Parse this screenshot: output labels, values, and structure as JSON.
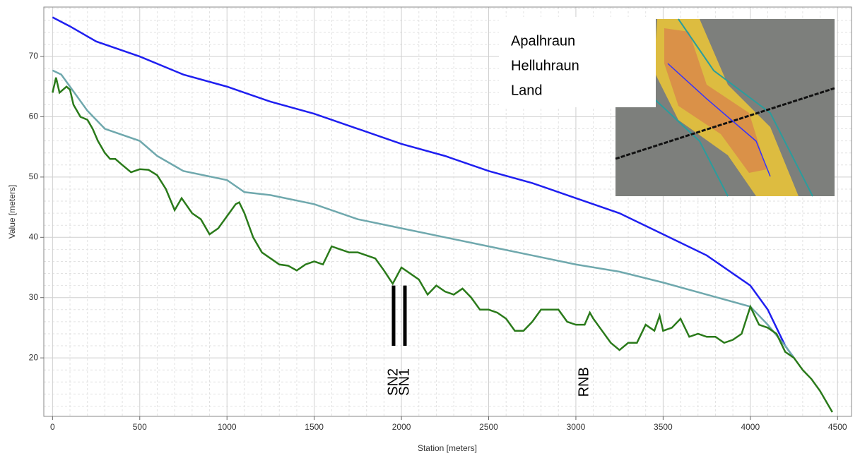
{
  "chart_data": {
    "type": "line",
    "xlabel": "Station [meters]",
    "ylabel": "Value [meters]",
    "xlim": [
      -50,
      4580
    ],
    "ylim": [
      10.3,
      78.2
    ],
    "xticks": [
      0,
      500,
      1000,
      1500,
      2000,
      2500,
      3000,
      3500,
      4000,
      4500
    ],
    "yticks": [
      20,
      30,
      40,
      50,
      60,
      70
    ],
    "grid": true,
    "series": [
      {
        "name": "Apalhraun",
        "color": "#1f1ff0",
        "x": [
          0,
          100,
          250,
          500,
          750,
          1000,
          1250,
          1500,
          1750,
          2000,
          2250,
          2500,
          2750,
          3000,
          3250,
          3500,
          3750,
          3900,
          4000,
          4100,
          4200,
          4250
        ],
        "values": [
          76.5,
          75,
          72.5,
          70,
          67,
          65,
          62.5,
          60.5,
          58,
          55.5,
          53.5,
          51,
          49,
          46.5,
          44,
          40.5,
          37,
          34,
          32,
          28,
          22,
          20
        ]
      },
      {
        "name": "Helluhraun",
        "color": "#6fa8ad",
        "x": [
          0,
          50,
          100,
          200,
          300,
          500,
          600,
          750,
          1000,
          1100,
          1250,
          1500,
          1750,
          2000,
          2250,
          2500,
          2750,
          3000,
          3250,
          3500,
          3750,
          4000,
          4100,
          4200,
          4250
        ],
        "values": [
          67.7,
          67,
          65,
          61,
          58,
          56,
          53.5,
          51,
          49.5,
          47.5,
          47,
          45.5,
          43,
          41.5,
          40,
          38.5,
          37,
          35.5,
          34.3,
          32.5,
          30.5,
          28.5,
          25.5,
          22,
          20
        ]
      },
      {
        "name": "Land",
        "color": "#2a7a1a",
        "x": [
          0,
          20,
          40,
          80,
          100,
          120,
          160,
          200,
          230,
          260,
          300,
          330,
          360,
          400,
          450,
          500,
          550,
          600,
          650,
          700,
          740,
          800,
          850,
          900,
          950,
          1000,
          1050,
          1070,
          1100,
          1150,
          1200,
          1250,
          1300,
          1350,
          1400,
          1450,
          1500,
          1550,
          1600,
          1650,
          1700,
          1750,
          1800,
          1850,
          1900,
          1950,
          2000,
          2050,
          2100,
          2150,
          2200,
          2250,
          2300,
          2350,
          2400,
          2450,
          2500,
          2550,
          2600,
          2650,
          2700,
          2750,
          2800,
          2850,
          2900,
          2950,
          3000,
          3050,
          3080,
          3100,
          3150,
          3200,
          3250,
          3300,
          3350,
          3400,
          3450,
          3480,
          3500,
          3550,
          3600,
          3650,
          3700,
          3750,
          3800,
          3850,
          3900,
          3950,
          4000,
          4050,
          4100,
          4150,
          4200,
          4250,
          4300,
          4350,
          4400,
          4450,
          4470
        ],
        "values": [
          64,
          66.5,
          64,
          65,
          64.5,
          62,
          60,
          59.5,
          58,
          56,
          54,
          53,
          53,
          52,
          50.8,
          51.3,
          51.2,
          50.3,
          48,
          44.5,
          46.5,
          44,
          43,
          40.5,
          41.5,
          43.5,
          45.5,
          45.8,
          44,
          40,
          37.5,
          36.5,
          35.5,
          35.3,
          34.5,
          35.5,
          36,
          35.5,
          38.5,
          38,
          37.5,
          37.5,
          37,
          36.5,
          34.5,
          32.3,
          35,
          34,
          33,
          30.5,
          32,
          31,
          30.5,
          31.5,
          30,
          28,
          28,
          27.5,
          26.5,
          24.5,
          24.5,
          26,
          28,
          28,
          28,
          26,
          25.5,
          25.5,
          27.5,
          26.5,
          24.5,
          22.5,
          21.3,
          22.5,
          22.5,
          25.5,
          24.5,
          27,
          24.5,
          25,
          26.5,
          23.5,
          24,
          23.5,
          23.5,
          22.5,
          23,
          24,
          28.5,
          25.5,
          25,
          24,
          21,
          20,
          18,
          16.5,
          14.5,
          12,
          11
        ]
      }
    ],
    "annotations": [
      {
        "text": "SN2",
        "x": 1955,
        "bar": [
          22,
          32
        ]
      },
      {
        "text": "SN1",
        "x": 2020,
        "bar": [
          22,
          32
        ]
      },
      {
        "text": "RNB",
        "x": 3050
      }
    ]
  }
}
